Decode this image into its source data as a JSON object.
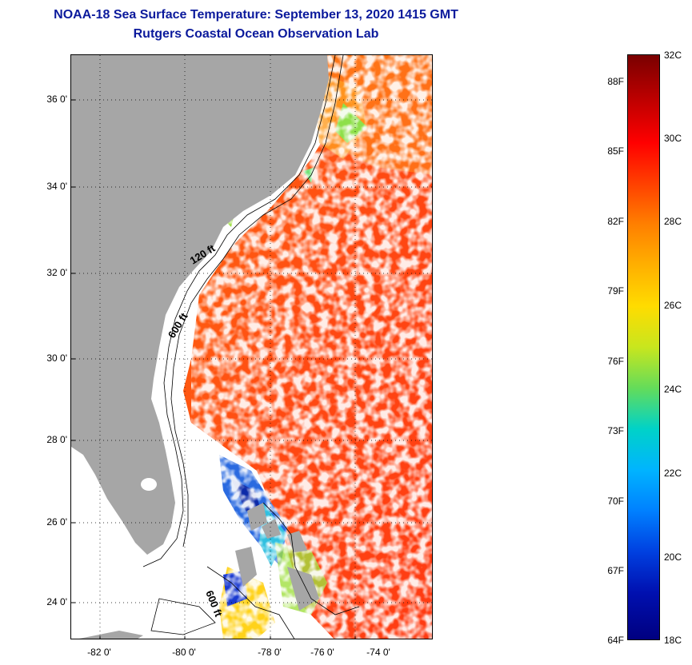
{
  "header": {
    "title": "NOAA-18 Sea Surface Temperature:  September 13, 2020 1415 GMT",
    "subtitle": "Rutgers Coastal Ocean Observation Lab"
  },
  "map": {
    "latitude_labels": [
      "36 0'",
      "34 0'",
      "32 0'",
      "30 0'",
      "28 0'",
      "26 0'",
      "24 0'"
    ],
    "longitude_labels": [
      "-82 0'",
      "-80 0'",
      "-78 0'",
      "-76 0'",
      "-74 0'"
    ],
    "contour_labels": [
      "120 ft",
      "600 ft",
      "600 ft"
    ],
    "land_color": "#a6a6a6"
  },
  "colorbar": {
    "fahrenheit_labels": [
      "88F",
      "85F",
      "82F",
      "79F",
      "76F",
      "73F",
      "70F",
      "67F",
      "64F"
    ],
    "celsius_labels": [
      "32C",
      "30C",
      "28C",
      "26C",
      "24C",
      "22C",
      "20C",
      "18C"
    ],
    "min_c": 18,
    "max_c": 32
  }
}
